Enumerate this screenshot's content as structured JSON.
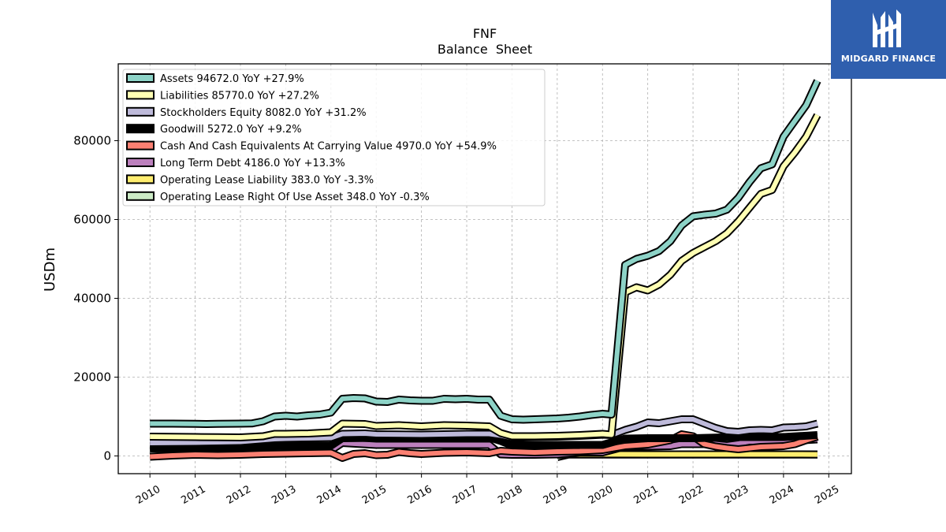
{
  "brand": {
    "name": "MIDGARD FINANCE",
    "bg": "#2f5fae"
  },
  "chart_data": {
    "type": "line",
    "title": "FNF",
    "subtitle": "Balance  Sheet",
    "ylabel": "USDm",
    "xlabel": "",
    "xlim": [
      2009.3,
      2025.5
    ],
    "ylim": [
      -4500,
      99500
    ],
    "yticks": [
      0,
      20000,
      40000,
      60000,
      80000
    ],
    "xticks": [
      2010,
      2011,
      2012,
      2013,
      2014,
      2015,
      2016,
      2017,
      2018,
      2019,
      2020,
      2021,
      2022,
      2023,
      2024,
      2025
    ],
    "grid": true,
    "legend_position": "top-left",
    "series": [
      {
        "name": "Assets",
        "legend": "Assets  94672.0 YoY +27.9%",
        "color": "#8dd3c7",
        "points": [
          [
            2010.0,
            8200
          ],
          [
            2010.5,
            8200
          ],
          [
            2011.0,
            8150
          ],
          [
            2011.25,
            8100
          ],
          [
            2011.5,
            8150
          ],
          [
            2012.0,
            8200
          ],
          [
            2012.25,
            8250
          ],
          [
            2012.5,
            8800
          ],
          [
            2012.75,
            10000
          ],
          [
            2013.0,
            10200
          ],
          [
            2013.25,
            10000
          ],
          [
            2013.5,
            10300
          ],
          [
            2013.75,
            10500
          ],
          [
            2014.0,
            11000
          ],
          [
            2014.25,
            14500
          ],
          [
            2014.5,
            14700
          ],
          [
            2014.75,
            14600
          ],
          [
            2015.0,
            13800
          ],
          [
            2015.25,
            13700
          ],
          [
            2015.5,
            14300
          ],
          [
            2015.75,
            14100
          ],
          [
            2016.0,
            14000
          ],
          [
            2016.25,
            14000
          ],
          [
            2016.5,
            14500
          ],
          [
            2016.75,
            14400
          ],
          [
            2017.0,
            14500
          ],
          [
            2017.25,
            14300
          ],
          [
            2017.5,
            14300
          ],
          [
            2017.75,
            10200
          ],
          [
            2018.0,
            9300
          ],
          [
            2018.25,
            9200
          ],
          [
            2018.5,
            9300
          ],
          [
            2018.75,
            9400
          ],
          [
            2019.0,
            9500
          ],
          [
            2019.25,
            9700
          ],
          [
            2019.5,
            10000
          ],
          [
            2019.75,
            10400
          ],
          [
            2020.0,
            10700
          ],
          [
            2020.2,
            10500
          ],
          [
            2020.5,
            48500
          ],
          [
            2020.75,
            50000
          ],
          [
            2021.0,
            50800
          ],
          [
            2021.25,
            52000
          ],
          [
            2021.5,
            54500
          ],
          [
            2021.75,
            58500
          ],
          [
            2022.0,
            60800
          ],
          [
            2022.25,
            61200
          ],
          [
            2022.5,
            61500
          ],
          [
            2022.75,
            62500
          ],
          [
            2023.0,
            65500
          ],
          [
            2023.25,
            69500
          ],
          [
            2023.5,
            73000
          ],
          [
            2023.75,
            74000
          ],
          [
            2024.0,
            81000
          ],
          [
            2024.25,
            85000
          ],
          [
            2024.5,
            89000
          ],
          [
            2024.75,
            95200
          ]
        ]
      },
      {
        "name": "Liabilities",
        "legend": "Liabilities  85770.0 YoY +27.2%",
        "color": "#ffffb3",
        "points": [
          [
            2010.0,
            4900
          ],
          [
            2011.0,
            4800
          ],
          [
            2011.5,
            4750
          ],
          [
            2012.0,
            4700
          ],
          [
            2012.5,
            5000
          ],
          [
            2012.75,
            5600
          ],
          [
            2013.0,
            5600
          ],
          [
            2013.5,
            5700
          ],
          [
            2014.0,
            6000
          ],
          [
            2014.25,
            8200
          ],
          [
            2014.75,
            8100
          ],
          [
            2015.0,
            7600
          ],
          [
            2015.5,
            7800
          ],
          [
            2016.0,
            7500
          ],
          [
            2016.5,
            7800
          ],
          [
            2017.0,
            7700
          ],
          [
            2017.5,
            7500
          ],
          [
            2017.75,
            5800
          ],
          [
            2018.0,
            5000
          ],
          [
            2018.5,
            5000
          ],
          [
            2019.0,
            5100
          ],
          [
            2019.5,
            5300
          ],
          [
            2020.0,
            5600
          ],
          [
            2020.2,
            5400
          ],
          [
            2020.5,
            41500
          ],
          [
            2020.75,
            42800
          ],
          [
            2021.0,
            42000
          ],
          [
            2021.25,
            43500
          ],
          [
            2021.5,
            46000
          ],
          [
            2021.75,
            49500
          ],
          [
            2022.0,
            51500
          ],
          [
            2022.25,
            53000
          ],
          [
            2022.5,
            54500
          ],
          [
            2022.75,
            56500
          ],
          [
            2023.0,
            59500
          ],
          [
            2023.25,
            63000
          ],
          [
            2023.5,
            66500
          ],
          [
            2023.75,
            67500
          ],
          [
            2024.0,
            73500
          ],
          [
            2024.25,
            77000
          ],
          [
            2024.5,
            81000
          ],
          [
            2024.75,
            86500
          ]
        ]
      },
      {
        "name": "Stockholders Equity",
        "legend": "Stockholders Equity  8082.0 YoY +31.2%",
        "color": "#bebada",
        "points": [
          [
            2010.0,
            3300
          ],
          [
            2011.0,
            3400
          ],
          [
            2012.0,
            3600
          ],
          [
            2012.75,
            4300
          ],
          [
            2013.0,
            4400
          ],
          [
            2013.5,
            4500
          ],
          [
            2014.0,
            4600
          ],
          [
            2014.25,
            5600
          ],
          [
            2014.75,
            5700
          ],
          [
            2015.0,
            5500
          ],
          [
            2016.0,
            5400
          ],
          [
            2016.5,
            5500
          ],
          [
            2017.0,
            5600
          ],
          [
            2017.5,
            5600
          ],
          [
            2017.75,
            5200
          ],
          [
            2018.0,
            4600
          ],
          [
            2018.5,
            4800
          ],
          [
            2019.0,
            4900
          ],
          [
            2019.5,
            5100
          ],
          [
            2020.0,
            5400
          ],
          [
            2020.2,
            5300
          ],
          [
            2020.5,
            6600
          ],
          [
            2020.75,
            7400
          ],
          [
            2021.0,
            8500
          ],
          [
            2021.25,
            8300
          ],
          [
            2021.5,
            8800
          ],
          [
            2021.75,
            9300
          ],
          [
            2022.0,
            9300
          ],
          [
            2022.25,
            8200
          ],
          [
            2022.5,
            7100
          ],
          [
            2022.75,
            6300
          ],
          [
            2023.0,
            6100
          ],
          [
            2023.25,
            6500
          ],
          [
            2023.5,
            6600
          ],
          [
            2023.75,
            6500
          ],
          [
            2024.0,
            7200
          ],
          [
            2024.25,
            7300
          ],
          [
            2024.5,
            7500
          ],
          [
            2024.75,
            8200
          ]
        ]
      },
      {
        "name": "Goodwill",
        "legend": "Goodwill  5272.0 YoY +9.2%",
        "color": "#000000",
        "points": [
          [
            2010.0,
            1900
          ],
          [
            2011.0,
            1950
          ],
          [
            2012.0,
            2100
          ],
          [
            2012.75,
            2500
          ],
          [
            2013.0,
            2550
          ],
          [
            2014.0,
            2600
          ],
          [
            2014.25,
            4500
          ],
          [
            2015.0,
            4600
          ],
          [
            2016.0,
            4600
          ],
          [
            2017.0,
            4700
          ],
          [
            2017.5,
            4700
          ],
          [
            2017.75,
            3800
          ],
          [
            2018.0,
            2700
          ],
          [
            2019.0,
            2800
          ],
          [
            2020.0,
            2800
          ],
          [
            2020.5,
            4400
          ],
          [
            2021.0,
            4500
          ],
          [
            2022.0,
            4500
          ],
          [
            2023.0,
            4800
          ],
          [
            2024.0,
            4800
          ],
          [
            2024.75,
            5300
          ]
        ]
      },
      {
        "name": "Cash And Cash Equivalents At Carrying Value",
        "legend": "Cash And Cash Equivalents At Carrying Value  4970.0 YoY +54.9%",
        "color": "#fb8072",
        "points": [
          [
            2010.0,
            -200
          ],
          [
            2010.5,
            100
          ],
          [
            2011.0,
            300
          ],
          [
            2011.5,
            200
          ],
          [
            2012.0,
            300
          ],
          [
            2012.5,
            500
          ],
          [
            2013.0,
            600
          ],
          [
            2013.5,
            700
          ],
          [
            2014.0,
            800
          ],
          [
            2014.25,
            -500
          ],
          [
            2014.5,
            500
          ],
          [
            2014.75,
            700
          ],
          [
            2015.0,
            200
          ],
          [
            2015.25,
            300
          ],
          [
            2015.5,
            1000
          ],
          [
            2015.75,
            700
          ],
          [
            2016.0,
            500
          ],
          [
            2016.5,
            800
          ],
          [
            2017.0,
            900
          ],
          [
            2017.5,
            700
          ],
          [
            2017.75,
            1300
          ],
          [
            2018.0,
            1100
          ],
          [
            2018.5,
            900
          ],
          [
            2019.0,
            1100
          ],
          [
            2019.5,
            1200
          ],
          [
            2020.0,
            1500
          ],
          [
            2020.5,
            2500
          ],
          [
            2021.0,
            2900
          ],
          [
            2021.5,
            4000
          ],
          [
            2021.75,
            5500
          ],
          [
            2022.0,
            5000
          ],
          [
            2022.25,
            3000
          ],
          [
            2022.5,
            2400
          ],
          [
            2022.75,
            2000
          ],
          [
            2023.0,
            1700
          ],
          [
            2023.5,
            2300
          ],
          [
            2024.0,
            2500
          ],
          [
            2024.25,
            3000
          ],
          [
            2024.5,
            4000
          ],
          [
            2024.75,
            4900
          ]
        ]
      },
      {
        "name": "Long Term Debt",
        "legend": "Long Term Debt  4186.0 YoY +13.3%",
        "color": "#bc80bd",
        "points": [
          [
            2011.0,
            1000
          ],
          [
            2012.0,
            1100
          ],
          [
            2012.75,
            1300
          ],
          [
            2013.0,
            1400
          ],
          [
            2014.0,
            1400
          ],
          [
            2014.25,
            3300
          ],
          [
            2015.0,
            2800
          ],
          [
            2016.0,
            2800
          ],
          [
            2017.0,
            2800
          ],
          [
            2017.5,
            2800
          ],
          [
            2017.75,
            400
          ],
          [
            2018.0,
            300
          ],
          [
            2018.5,
            300
          ],
          [
            2019.0,
            400
          ],
          [
            2019.5,
            900
          ],
          [
            2020.0,
            900
          ],
          [
            2020.5,
            2400
          ],
          [
            2021.0,
            2400
          ],
          [
            2021.5,
            2500
          ],
          [
            2021.75,
            3000
          ],
          [
            2022.0,
            3000
          ],
          [
            2022.5,
            3000
          ],
          [
            2022.75,
            2700
          ],
          [
            2023.0,
            3100
          ],
          [
            2023.25,
            3700
          ],
          [
            2024.0,
            3700
          ],
          [
            2024.75,
            4200
          ]
        ]
      },
      {
        "name": "Operating Lease Liability",
        "legend": "Operating Lease Liability  383.0 YoY -3.3%",
        "color": "#ffed6f",
        "points": [
          [
            2019.0,
            300
          ],
          [
            2019.25,
            400
          ],
          [
            2020.0,
            420
          ],
          [
            2021.0,
            400
          ],
          [
            2022.0,
            390
          ],
          [
            2023.0,
            390
          ],
          [
            2024.0,
            390
          ],
          [
            2024.75,
            383
          ]
        ]
      },
      {
        "name": "Operating Lease Right Of Use Asset",
        "legend": "Operating Lease Right Of Use Asset  348.0 YoY -0.3%",
        "color": "#ccebc5",
        "points": [
          [
            2019.0,
            -300
          ],
          [
            2019.25,
            350
          ],
          [
            2020.0,
            360
          ],
          [
            2021.0,
            350
          ],
          [
            2022.0,
            350
          ],
          [
            2023.0,
            350
          ],
          [
            2024.0,
            350
          ],
          [
            2024.75,
            348
          ]
        ]
      }
    ]
  }
}
